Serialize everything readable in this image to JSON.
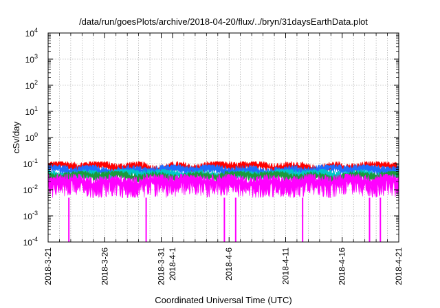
{
  "chart_data": {
    "type": "area",
    "title": "/data/run/goesPlots/archive/2018-04-20/flux/../bryn/31daysEarthData.plot",
    "xlabel": "Coordinated Universal Time (UTC)",
    "ylabel": "cSv/day",
    "y_scale": "log",
    "ylim": [
      0.0001,
      10000
    ],
    "xlim": [
      "2018-03-21",
      "2018-04-21"
    ],
    "grid": true,
    "legend": "none",
    "y_ticks": [
      {
        "base": "10",
        "exp": "-4"
      },
      {
        "base": "10",
        "exp": "-3"
      },
      {
        "base": "10",
        "exp": "-2"
      },
      {
        "base": "10",
        "exp": "-1"
      },
      {
        "base": "10",
        "exp": "0"
      },
      {
        "base": "10",
        "exp": "1"
      },
      {
        "base": "10",
        "exp": "2"
      },
      {
        "base": "10",
        "exp": "3"
      },
      {
        "base": "10",
        "exp": "4"
      }
    ],
    "x_ticks": [
      {
        "date": "2018-03-21",
        "label": "2018-3-21"
      },
      {
        "date": "2018-03-26",
        "label": "2018-3-26"
      },
      {
        "date": "2018-03-31",
        "label": "2018-3-31"
      },
      {
        "date": "2018-04-01",
        "label": "2018-4-1"
      },
      {
        "date": "2018-04-06",
        "label": "2018-4-6"
      },
      {
        "date": "2018-04-11",
        "label": "2018-4-11"
      },
      {
        "date": "2018-04-16",
        "label": "2018-4-16"
      },
      {
        "date": "2018-04-21",
        "label": "2018-4-21"
      }
    ],
    "minor_grid_dates": [
      "2018-03-22",
      "2018-03-23",
      "2018-03-24",
      "2018-03-25",
      "2018-03-27",
      "2018-03-28",
      "2018-03-29",
      "2018-03-30",
      "2018-04-02",
      "2018-04-03",
      "2018-04-04",
      "2018-04-05",
      "2018-04-07",
      "2018-04-08",
      "2018-04-09",
      "2018-04-10",
      "2018-04-12",
      "2018-04-13",
      "2018-04-14",
      "2018-04-15",
      "2018-04-17",
      "2018-04-18",
      "2018-04-19",
      "2018-04-20"
    ],
    "series": [
      {
        "color": "#ff0000",
        "typical": 0.075,
        "range": [
          0.05,
          0.12
        ]
      },
      {
        "color": "#1e6eff",
        "typical": 0.058,
        "range": [
          0.035,
          0.09
        ]
      },
      {
        "color": "#00c8c8",
        "typical": 0.04,
        "range": [
          0.025,
          0.06
        ]
      },
      {
        "color": "#1a9a3a",
        "typical": 0.035,
        "range": [
          0.02,
          0.05
        ]
      },
      {
        "color": "#ff00ff",
        "typical": 0.02,
        "range": [
          0.005,
          0.04
        ]
      }
    ],
    "dropouts": [
      {
        "date": "2018-03-22 20:00",
        "color": "#ff00ff",
        "value": 0.0001
      },
      {
        "date": "2018-03-29 16:00",
        "color": "#ff00ff",
        "value": 0.0001
      },
      {
        "date": "2018-04-05 14:00",
        "color": "#ff00ff",
        "value": 0.0001
      },
      {
        "date": "2018-04-06 14:00",
        "color": "#ff00ff",
        "value": 0.0001
      },
      {
        "date": "2018-04-12 12:00",
        "color": "#ff00ff",
        "value": 0.0001
      },
      {
        "date": "2018-04-18 10:00",
        "color": "#ff00ff",
        "value": 0.0001
      },
      {
        "date": "2018-04-19 09:00",
        "color": "#ff00ff",
        "value": 0.0001
      }
    ]
  }
}
